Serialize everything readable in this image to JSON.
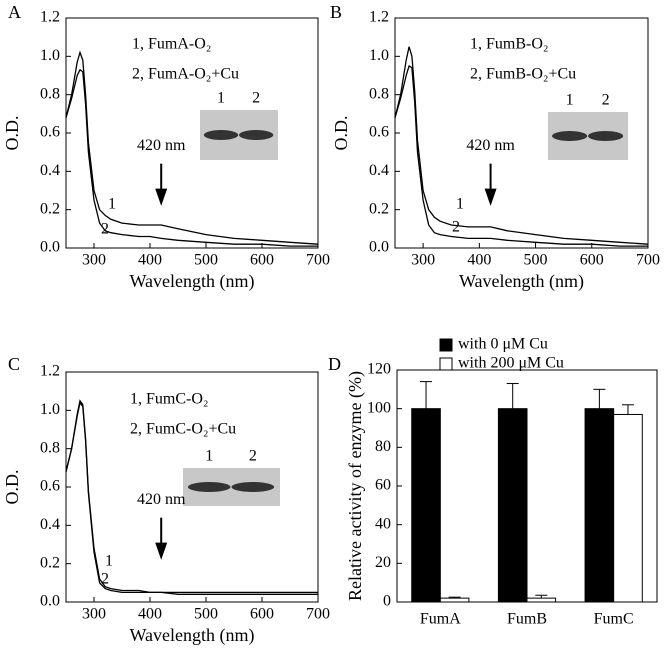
{
  "chart_data": [
    {
      "type": "line",
      "label": "A",
      "xlabel": "Wavelength (nm)",
      "ylabel": "O.D.",
      "x": [
        250,
        260,
        270,
        275,
        280,
        285,
        290,
        300,
        310,
        320,
        330,
        350,
        380,
        400,
        420,
        450,
        500,
        550,
        600,
        650,
        700
      ],
      "series": [
        {
          "name": "1, FumA-O₂",
          "color": "#000000",
          "values": [
            0.68,
            0.8,
            0.97,
            1.02,
            0.98,
            0.8,
            0.55,
            0.3,
            0.2,
            0.17,
            0.15,
            0.13,
            0.12,
            0.12,
            0.12,
            0.1,
            0.07,
            0.05,
            0.04,
            0.03,
            0.02
          ]
        },
        {
          "name": "2, FumA-O₂+Cu",
          "color": "#000000",
          "values": [
            0.68,
            0.78,
            0.9,
            0.93,
            0.92,
            0.75,
            0.5,
            0.25,
            0.13,
            0.09,
            0.08,
            0.07,
            0.06,
            0.06,
            0.05,
            0.04,
            0.03,
            0.02,
            0.02,
            0.01,
            0.01
          ]
        }
      ],
      "curve_labels": [
        "1",
        "2"
      ],
      "gel_lanes": [
        "1",
        "2"
      ],
      "annotation": {
        "text": "420 nm",
        "x": 420
      },
      "xlim": [
        250,
        700
      ],
      "xticks": [
        300,
        400,
        500,
        600,
        700
      ],
      "ylim": [
        0,
        1.2
      ],
      "yticks": [
        {
          "value": 0,
          "label": "0.0"
        },
        0.2,
        0.4,
        0.6,
        0.8,
        {
          "value": 1,
          "label": "1.0"
        },
        1.2
      ]
    },
    {
      "type": "line",
      "label": "B",
      "xlabel": "Wavelength (nm)",
      "ylabel": "O.D.",
      "x": [
        250,
        260,
        270,
        275,
        280,
        285,
        290,
        300,
        310,
        320,
        330,
        350,
        380,
        400,
        420,
        450,
        500,
        550,
        600,
        650,
        700
      ],
      "series": [
        {
          "name": "1, FumB-O₂",
          "color": "#000000",
          "values": [
            0.68,
            0.8,
            0.98,
            1.05,
            1.0,
            0.82,
            0.56,
            0.3,
            0.2,
            0.16,
            0.14,
            0.12,
            0.11,
            0.11,
            0.11,
            0.09,
            0.07,
            0.05,
            0.04,
            0.03,
            0.02
          ]
        },
        {
          "name": "2, FumB-O₂+Cu",
          "color": "#000000",
          "values": [
            0.68,
            0.78,
            0.9,
            0.95,
            0.94,
            0.76,
            0.5,
            0.25,
            0.12,
            0.08,
            0.07,
            0.06,
            0.05,
            0.05,
            0.05,
            0.04,
            0.03,
            0.02,
            0.02,
            0.01,
            0.01
          ]
        }
      ],
      "curve_labels": [
        "1",
        "2"
      ],
      "gel_lanes": [
        "1",
        "2"
      ],
      "annotation": {
        "text": "420 nm",
        "x": 420
      },
      "xlim": [
        250,
        700
      ],
      "xticks": [
        300,
        400,
        500,
        600,
        700
      ],
      "ylim": [
        0,
        1.2
      ],
      "yticks": [
        {
          "value": 0,
          "label": "0.0"
        },
        0.2,
        0.4,
        0.6,
        0.8,
        {
          "value": 1,
          "label": "1.0"
        },
        1.2
      ]
    },
    {
      "type": "line",
      "label": "C",
      "xlabel": "Wavelength (nm)",
      "ylabel": "O.D.",
      "x": [
        250,
        260,
        270,
        275,
        280,
        285,
        290,
        300,
        310,
        320,
        330,
        350,
        380,
        400,
        420,
        450,
        500,
        550,
        600,
        650,
        700
      ],
      "series": [
        {
          "name": "1, FumC-O₂",
          "color": "#000000",
          "values": [
            0.68,
            0.8,
            0.98,
            1.05,
            1.03,
            0.85,
            0.58,
            0.28,
            0.12,
            0.08,
            0.07,
            0.06,
            0.06,
            0.05,
            0.05,
            0.05,
            0.05,
            0.05,
            0.05,
            0.05,
            0.05
          ]
        },
        {
          "name": "2, FumC-O₂+Cu",
          "color": "#000000",
          "values": [
            0.68,
            0.8,
            0.97,
            1.04,
            1.02,
            0.84,
            0.57,
            0.26,
            0.1,
            0.07,
            0.06,
            0.05,
            0.05,
            0.05,
            0.05,
            0.04,
            0.04,
            0.04,
            0.04,
            0.04,
            0.04
          ]
        }
      ],
      "curve_labels": [
        "1",
        "2"
      ],
      "gel_lanes": [
        "1",
        "2"
      ],
      "annotation": {
        "text": "420 nm",
        "x": 420
      },
      "xlim": [
        250,
        700
      ],
      "xticks": [
        300,
        400,
        500,
        600,
        700
      ],
      "ylim": [
        0,
        1.2
      ],
      "yticks": [
        {
          "value": 0,
          "label": "0.0"
        },
        0.2,
        0.4,
        0.6,
        0.8,
        {
          "value": 1,
          "label": "1.0"
        },
        1.2
      ]
    },
    {
      "type": "bar",
      "label": "D",
      "ylabel": "Relative activity of enzyme (%)",
      "categories": [
        "FumA",
        "FumB",
        "FumC"
      ],
      "series": [
        {
          "name": "with 0 μM Cu",
          "color": "#000000",
          "values": [
            100,
            100,
            100
          ],
          "errors": [
            14,
            13,
            10
          ]
        },
        {
          "name": "with 200 μM Cu",
          "color": "#ffffff",
          "values": [
            2,
            2,
            97
          ],
          "errors": [
            0.5,
            1.5,
            5
          ]
        }
      ],
      "ylim": [
        0,
        120
      ],
      "yticks": [
        0,
        20,
        40,
        60,
        80,
        100,
        120
      ]
    }
  ]
}
